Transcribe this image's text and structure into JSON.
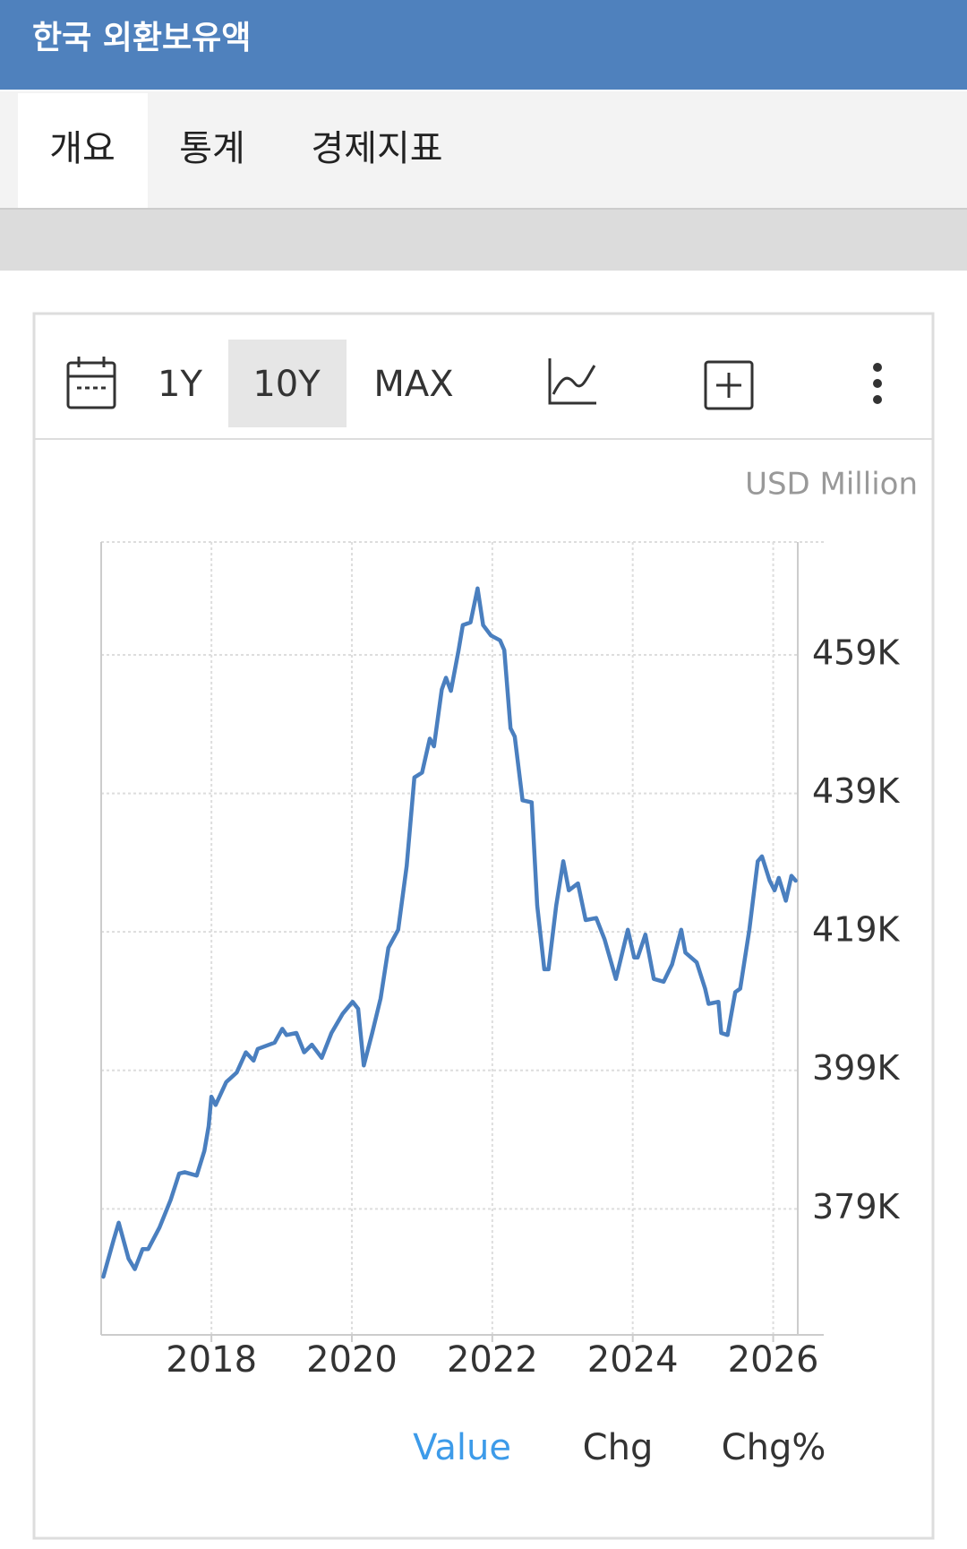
{
  "header": {
    "title": "한국 외환보유액"
  },
  "tabs": [
    "개요",
    "통계",
    "경제지표"
  ],
  "toolbar": [
    "1Y",
    "10Y",
    "MAX"
  ],
  "views": [
    "Value",
    "Chg",
    "Chg%"
  ],
  "chart_data": {
    "type": "line",
    "y_unit": "USD Million",
    "color": "#4a7fbf",
    "grid": true,
    "x": [
      2016.46,
      2016.61,
      2016.68,
      2016.82,
      2016.91,
      2017.02,
      2017.1,
      2017.26,
      2017.42,
      2017.54,
      2017.62,
      2017.79,
      2017.9,
      2017.96,
      2018.0,
      2018.06,
      2018.21,
      2018.36,
      2018.49,
      2018.6,
      2018.66,
      2018.9,
      2019.01,
      2019.07,
      2019.21,
      2019.32,
      2019.43,
      2019.57,
      2019.71,
      2019.87,
      2020.01,
      2020.09,
      2020.17,
      2020.29,
      2020.41,
      2020.52,
      2020.66,
      2020.78,
      2020.89,
      2021.0,
      2021.11,
      2021.17,
      2021.28,
      2021.34,
      2021.41,
      2021.52,
      2021.58,
      2021.69,
      2021.79,
      2021.87,
      2021.98,
      2022.11,
      2022.17,
      2022.26,
      2022.32,
      2022.43,
      2022.56,
      2022.64,
      2022.74,
      2022.8,
      2022.91,
      2023.01,
      2023.09,
      2023.22,
      2023.33,
      2023.48,
      2023.6,
      2023.76,
      2023.93,
      2024.02,
      2024.07,
      2024.18,
      2024.3,
      2024.44,
      2024.56,
      2024.69,
      2024.75,
      2024.91,
      2025.03,
      2025.08,
      2025.22,
      2025.26,
      2025.35,
      2025.46,
      2025.53,
      2025.66,
      2025.78,
      2025.84,
      2025.95,
      2026.02,
      2026.08,
      2026.18,
      2026.26,
      2026.32
    ],
    "values": [
      369200,
      374600,
      377000,
      371800,
      370300,
      373200,
      373200,
      376300,
      380300,
      384100,
      384300,
      383800,
      387400,
      390900,
      395200,
      394000,
      397300,
      398700,
      401600,
      400400,
      402100,
      403000,
      405000,
      404100,
      404400,
      401600,
      402700,
      400800,
      404400,
      407200,
      408900,
      407900,
      399700,
      404400,
      409400,
      416700,
      419300,
      428500,
      441300,
      442000,
      446900,
      445800,
      454000,
      455700,
      453800,
      459700,
      463300,
      463700,
      468600,
      463300,
      461800,
      461100,
      459700,
      448400,
      447200,
      438000,
      437700,
      422800,
      413600,
      413600,
      422800,
      429200,
      425000,
      426000,
      420700,
      421000,
      417900,
      412200,
      419300,
      415300,
      415300,
      418600,
      412200,
      411800,
      414300,
      419300,
      416000,
      414600,
      410800,
      408600,
      408900,
      404400,
      404100,
      410300,
      410800,
      419300,
      429200,
      429900,
      426400,
      425000,
      426800,
      423500,
      427100,
      426400
    ],
    "xlim": [
      2016.43,
      2026.35
    ],
    "xticks": [
      2018,
      2020,
      2022,
      2024,
      2026
    ],
    "ylim": [
      360800,
      475300
    ],
    "yticks": [
      {
        "value": 379000,
        "label": "379K"
      },
      {
        "value": 399000,
        "label": "399K"
      },
      {
        "value": 419000,
        "label": "419K"
      },
      {
        "value": 439000,
        "label": "439K"
      },
      {
        "value": 459000,
        "label": "459K"
      }
    ]
  }
}
